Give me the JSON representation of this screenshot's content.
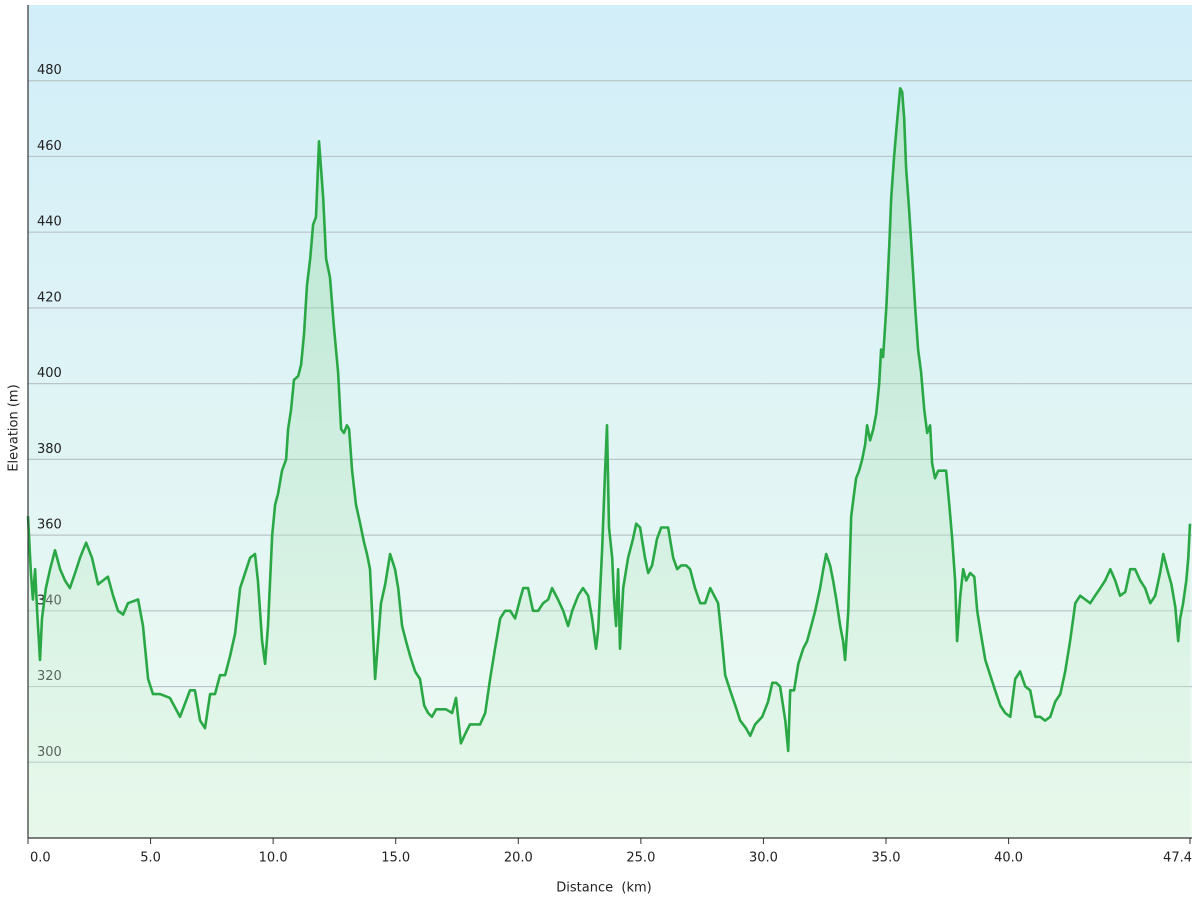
{
  "chart_data": {
    "type": "area",
    "xlabel": "Distance  (km)",
    "ylabel": "Elevation (m)",
    "color": "#2aa845",
    "grid": true,
    "xlim": [
      0,
      47.4
    ],
    "ylim": [
      280,
      500
    ],
    "yticks": [
      300,
      320,
      340,
      360,
      380,
      400,
      420,
      440,
      460,
      480
    ],
    "xticks": [
      {
        "value": 0,
        "label": "0.0"
      },
      {
        "value": 5,
        "label": "5.0"
      },
      {
        "value": 10,
        "label": "10.0"
      },
      {
        "value": 15,
        "label": "15.0"
      },
      {
        "value": 20,
        "label": "20.0"
      },
      {
        "value": 25,
        "label": "25.0"
      },
      {
        "value": 30,
        "label": "30.0"
      },
      {
        "value": 35,
        "label": "35.0"
      },
      {
        "value": 40,
        "label": "40.0"
      },
      {
        "value": 47.4,
        "label": "47.4"
      }
    ],
    "x": [
      0.0,
      0.12,
      0.2,
      0.29,
      0.37,
      0.49,
      0.57,
      0.73,
      0.9,
      1.1,
      1.31,
      1.51,
      1.71,
      1.92,
      2.12,
      2.37,
      2.61,
      2.86,
      3.06,
      3.26,
      3.47,
      3.67,
      3.88,
      4.08,
      4.49,
      4.69,
      4.9,
      5.1,
      5.39,
      5.79,
      6.2,
      6.61,
      6.81,
      7.02,
      7.22,
      7.43,
      7.63,
      7.83,
      8.04,
      8.24,
      8.45,
      8.65,
      9.06,
      9.26,
      9.38,
      9.55,
      9.67,
      9.79,
      9.96,
      10.08,
      10.2,
      10.36,
      10.53,
      10.61,
      10.73,
      10.85,
      11.02,
      11.14,
      11.26,
      11.38,
      11.51,
      11.63,
      11.75,
      11.87,
      11.95,
      12.04,
      12.16,
      12.32,
      12.48,
      12.65,
      12.77,
      12.89,
      13.01,
      13.1,
      13.22,
      13.38,
      13.55,
      13.71,
      13.83,
      13.95,
      14.04,
      14.16,
      14.28,
      14.4,
      14.57,
      14.77,
      14.97,
      15.1,
      15.26,
      15.42,
      15.59,
      15.79,
      15.99,
      16.16,
      16.32,
      16.48,
      16.65,
      16.81,
      17.05,
      17.3,
      17.46,
      17.66,
      17.87,
      18.03,
      18.44,
      18.65,
      18.85,
      19.05,
      19.26,
      19.46,
      19.67,
      19.87,
      20.07,
      20.2,
      20.4,
      20.6,
      20.81,
      21.01,
      21.22,
      21.38,
      21.62,
      21.83,
      22.03,
      22.2,
      22.44,
      22.64,
      22.85,
      23.01,
      23.17,
      23.26,
      23.42,
      23.54,
      23.62,
      23.7,
      23.83,
      23.91,
      23.99,
      24.07,
      24.15,
      24.28,
      24.48,
      24.68,
      24.81,
      24.97,
      25.17,
      25.3,
      25.46,
      25.66,
      25.83,
      26.11,
      26.32,
      26.48,
      26.64,
      26.85,
      27.01,
      27.21,
      27.42,
      27.62,
      27.83,
      27.99,
      28.15,
      28.31,
      28.44,
      28.64,
      28.85,
      29.05,
      29.29,
      29.46,
      29.66,
      29.95,
      30.19,
      30.36,
      30.52,
      30.68,
      30.89,
      31.01,
      31.09,
      31.25,
      31.42,
      31.62,
      31.78,
      31.95,
      32.11,
      32.31,
      32.44,
      32.56,
      32.72,
      32.84,
      32.97,
      33.13,
      33.25,
      33.33,
      33.46,
      33.58,
      33.7,
      33.78,
      33.9,
      34.03,
      34.15,
      34.23,
      34.35,
      34.48,
      34.6,
      34.72,
      34.8,
      34.88,
      35.01,
      35.13,
      35.21,
      35.33,
      35.45,
      35.58,
      35.66,
      35.74,
      35.82,
      35.94,
      36.07,
      36.19,
      36.31,
      36.43,
      36.56,
      36.68,
      36.8,
      36.88,
      37.0,
      37.13,
      37.45,
      37.58,
      37.7,
      37.82,
      37.9,
      38.03,
      38.15,
      38.27,
      38.43,
      38.6,
      38.72,
      38.84,
      39.05,
      39.25,
      39.45,
      39.66,
      39.86,
      40.07,
      40.27,
      40.47,
      40.68,
      40.88,
      41.09,
      41.29,
      41.49,
      41.7,
      41.9,
      42.11,
      42.31,
      42.51,
      42.72,
      42.92,
      43.13,
      43.33,
      43.53,
      43.74,
      43.94,
      44.15,
      44.35,
      44.55,
      44.76,
      44.96,
      45.16,
      45.37,
      45.57,
      45.78,
      45.98,
      46.18,
      46.31,
      46.47,
      46.64,
      46.8,
      46.92,
      47.0,
      47.12,
      47.25,
      47.33,
      47.4
    ],
    "values": [
      365,
      350,
      343,
      351,
      340,
      327,
      338,
      346,
      351,
      356,
      351,
      348,
      346,
      350,
      354,
      358,
      354,
      347,
      348,
      349,
      344,
      340,
      339,
      342,
      343,
      336,
      322,
      318,
      318,
      317,
      312,
      319,
      319,
      311,
      309,
      318,
      318,
      323,
      323,
      328,
      334,
      346,
      354,
      355,
      348,
      332,
      326,
      336,
      360,
      368,
      371,
      377,
      380,
      388,
      393,
      401,
      402,
      405,
      413,
      426,
      433,
      442,
      444,
      464,
      457,
      449,
      433,
      428,
      415,
      403,
      388,
      387,
      389,
      388,
      377,
      368,
      363,
      358,
      355,
      351,
      339,
      322,
      332,
      342,
      347,
      355,
      351,
      346,
      336,
      332,
      328,
      324,
      322,
      315,
      313,
      312,
      314,
      314,
      314,
      313,
      317,
      305,
      308,
      310,
      310,
      313,
      322,
      330,
      338,
      340,
      340,
      338,
      343,
      346,
      346,
      340,
      340,
      342,
      343,
      346,
      343,
      340,
      336,
      340,
      344,
      346,
      344,
      338,
      330,
      335,
      356,
      377,
      389,
      362,
      354,
      343,
      336,
      351,
      330,
      346,
      354,
      359,
      363,
      362,
      354,
      350,
      352,
      359,
      362,
      362,
      354,
      351,
      352,
      352,
      351,
      346,
      342,
      342,
      346,
      344,
      342,
      332,
      323,
      319,
      315,
      311,
      309,
      307,
      310,
      312,
      316,
      321,
      321,
      320,
      311,
      303,
      319,
      319,
      326,
      330,
      332,
      336,
      340,
      346,
      351,
      355,
      352,
      348,
      343,
      336,
      332,
      327,
      340,
      365,
      371,
      375,
      377,
      380,
      384,
      389,
      385,
      388,
      392,
      400,
      409,
      407,
      420,
      436,
      449,
      460,
      469,
      478,
      477,
      470,
      457,
      446,
      433,
      420,
      409,
      403,
      393,
      387,
      389,
      379,
      375,
      377,
      377,
      368,
      359,
      348,
      332,
      344,
      351,
      348,
      350,
      349,
      340,
      335,
      327,
      323,
      319,
      315,
      313,
      312,
      322,
      324,
      320,
      319,
      312,
      312,
      311,
      312,
      316,
      318,
      324,
      332,
      342,
      344,
      343,
      342,
      344,
      346,
      348,
      351,
      348,
      344,
      345,
      351,
      351,
      348,
      346,
      342,
      344,
      350,
      355,
      351,
      347,
      341,
      332,
      338,
      342,
      348,
      354,
      363
    ]
  }
}
